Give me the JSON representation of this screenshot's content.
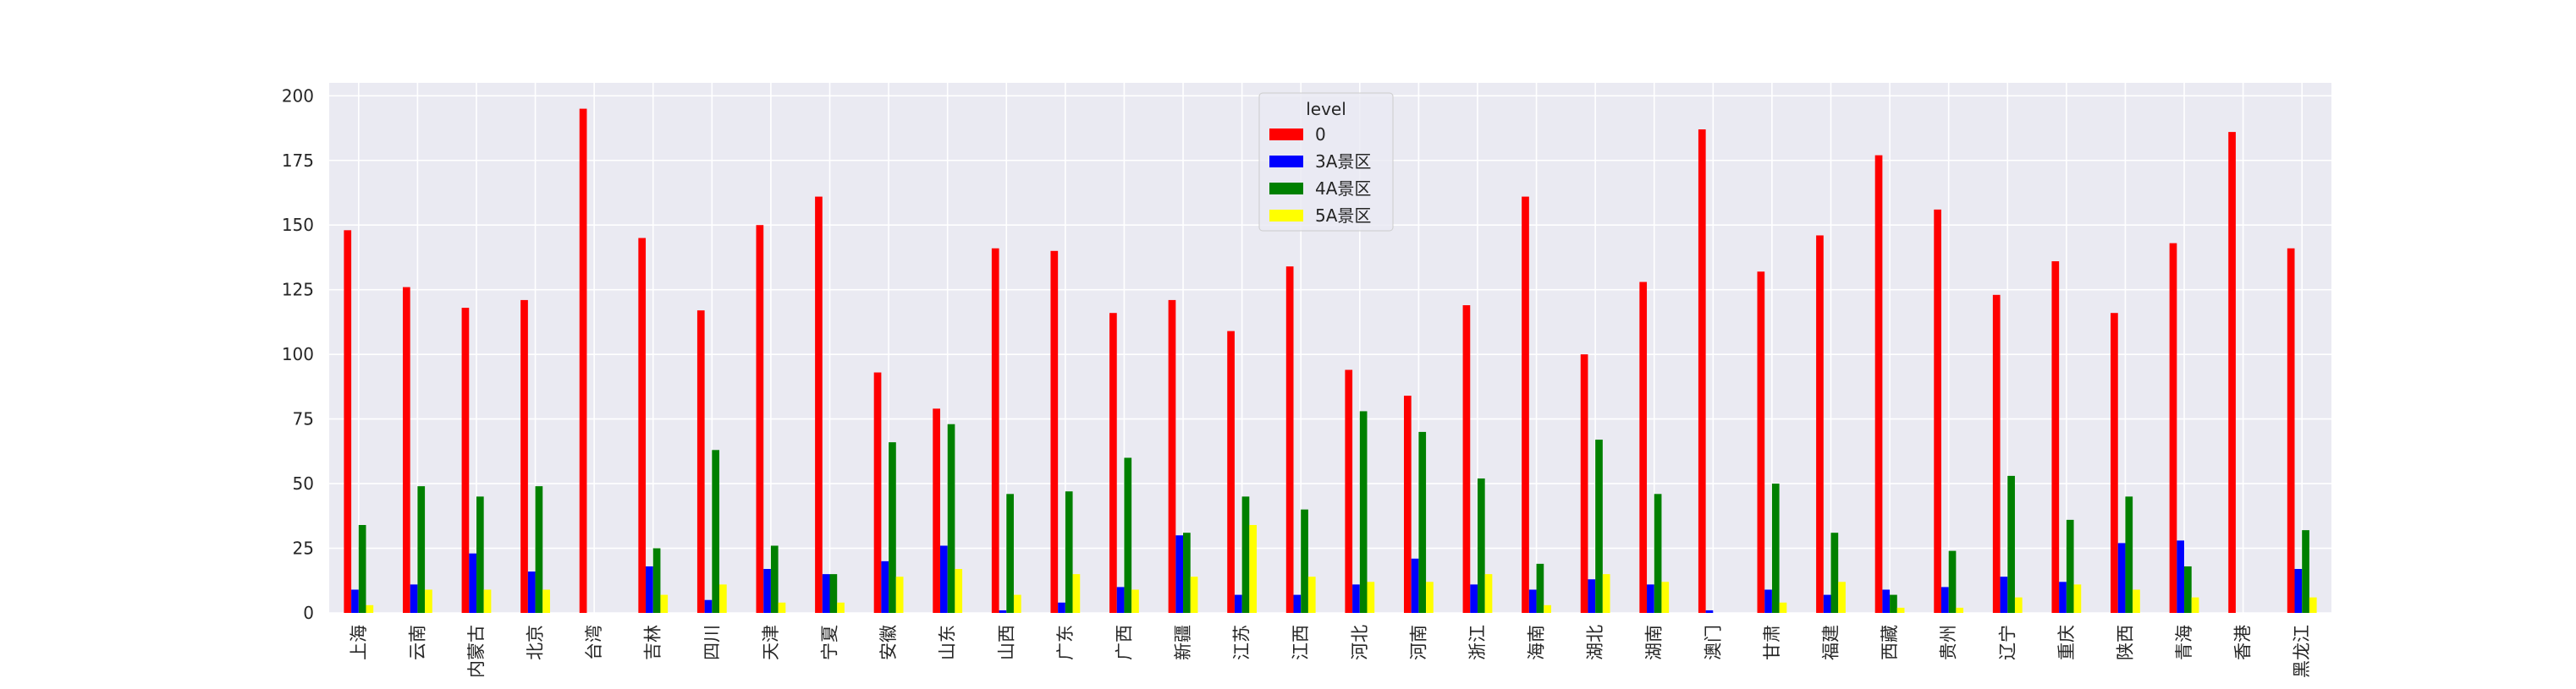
{
  "chart_data": {
    "type": "bar",
    "categories": [
      "上海",
      "云南",
      "内蒙古",
      "北京",
      "台湾",
      "吉林",
      "四川",
      "天津",
      "宁夏",
      "安徽",
      "山东",
      "山西",
      "广东",
      "广西",
      "新疆",
      "江苏",
      "江西",
      "河北",
      "河南",
      "浙江",
      "海南",
      "湖北",
      "湖南",
      "澳门",
      "甘肃",
      "福建",
      "西藏",
      "贵州",
      "辽宁",
      "重庆",
      "陕西",
      "青海",
      "香港",
      "黑龙江"
    ],
    "series": [
      {
        "name": "0",
        "color": "#ff0000",
        "values": [
          148,
          126,
          118,
          121,
          195,
          145,
          117,
          150,
          161,
          93,
          79,
          141,
          140,
          116,
          121,
          109,
          134,
          94,
          84,
          119,
          161,
          100,
          128,
          187,
          132,
          146,
          177,
          156,
          123,
          136,
          116,
          143,
          186,
          141
        ]
      },
      {
        "name": "3A景区",
        "color": "#0000ff",
        "values": [
          9,
          11,
          23,
          16,
          0,
          18,
          5,
          17,
          15,
          20,
          26,
          1,
          4,
          10,
          30,
          7,
          7,
          11,
          21,
          11,
          9,
          13,
          11,
          1,
          9,
          7,
          9,
          10,
          14,
          12,
          27,
          28,
          0,
          17
        ]
      },
      {
        "name": "4A景区",
        "color": "#008000",
        "values": [
          34,
          49,
          45,
          49,
          0,
          25,
          63,
          26,
          15,
          66,
          73,
          46,
          47,
          60,
          31,
          45,
          40,
          78,
          70,
          52,
          19,
          67,
          46,
          0,
          50,
          31,
          7,
          24,
          53,
          36,
          45,
          18,
          0,
          32
        ]
      },
      {
        "name": "5A景区",
        "color": "#ffff00",
        "values": [
          3,
          9,
          9,
          9,
          0,
          7,
          11,
          4,
          4,
          14,
          17,
          7,
          15,
          9,
          14,
          34,
          14,
          12,
          12,
          15,
          3,
          15,
          12,
          0,
          4,
          12,
          2,
          2,
          6,
          11,
          9,
          6,
          0,
          6
        ]
      }
    ],
    "ylim": [
      0,
      205
    ],
    "yticks": [
      0,
      25,
      50,
      75,
      100,
      125,
      150,
      175,
      200
    ],
    "grid": true,
    "legend": {
      "title": "level",
      "placement": "top-center"
    },
    "xlabel": "",
    "ylabel": "",
    "title": ""
  }
}
